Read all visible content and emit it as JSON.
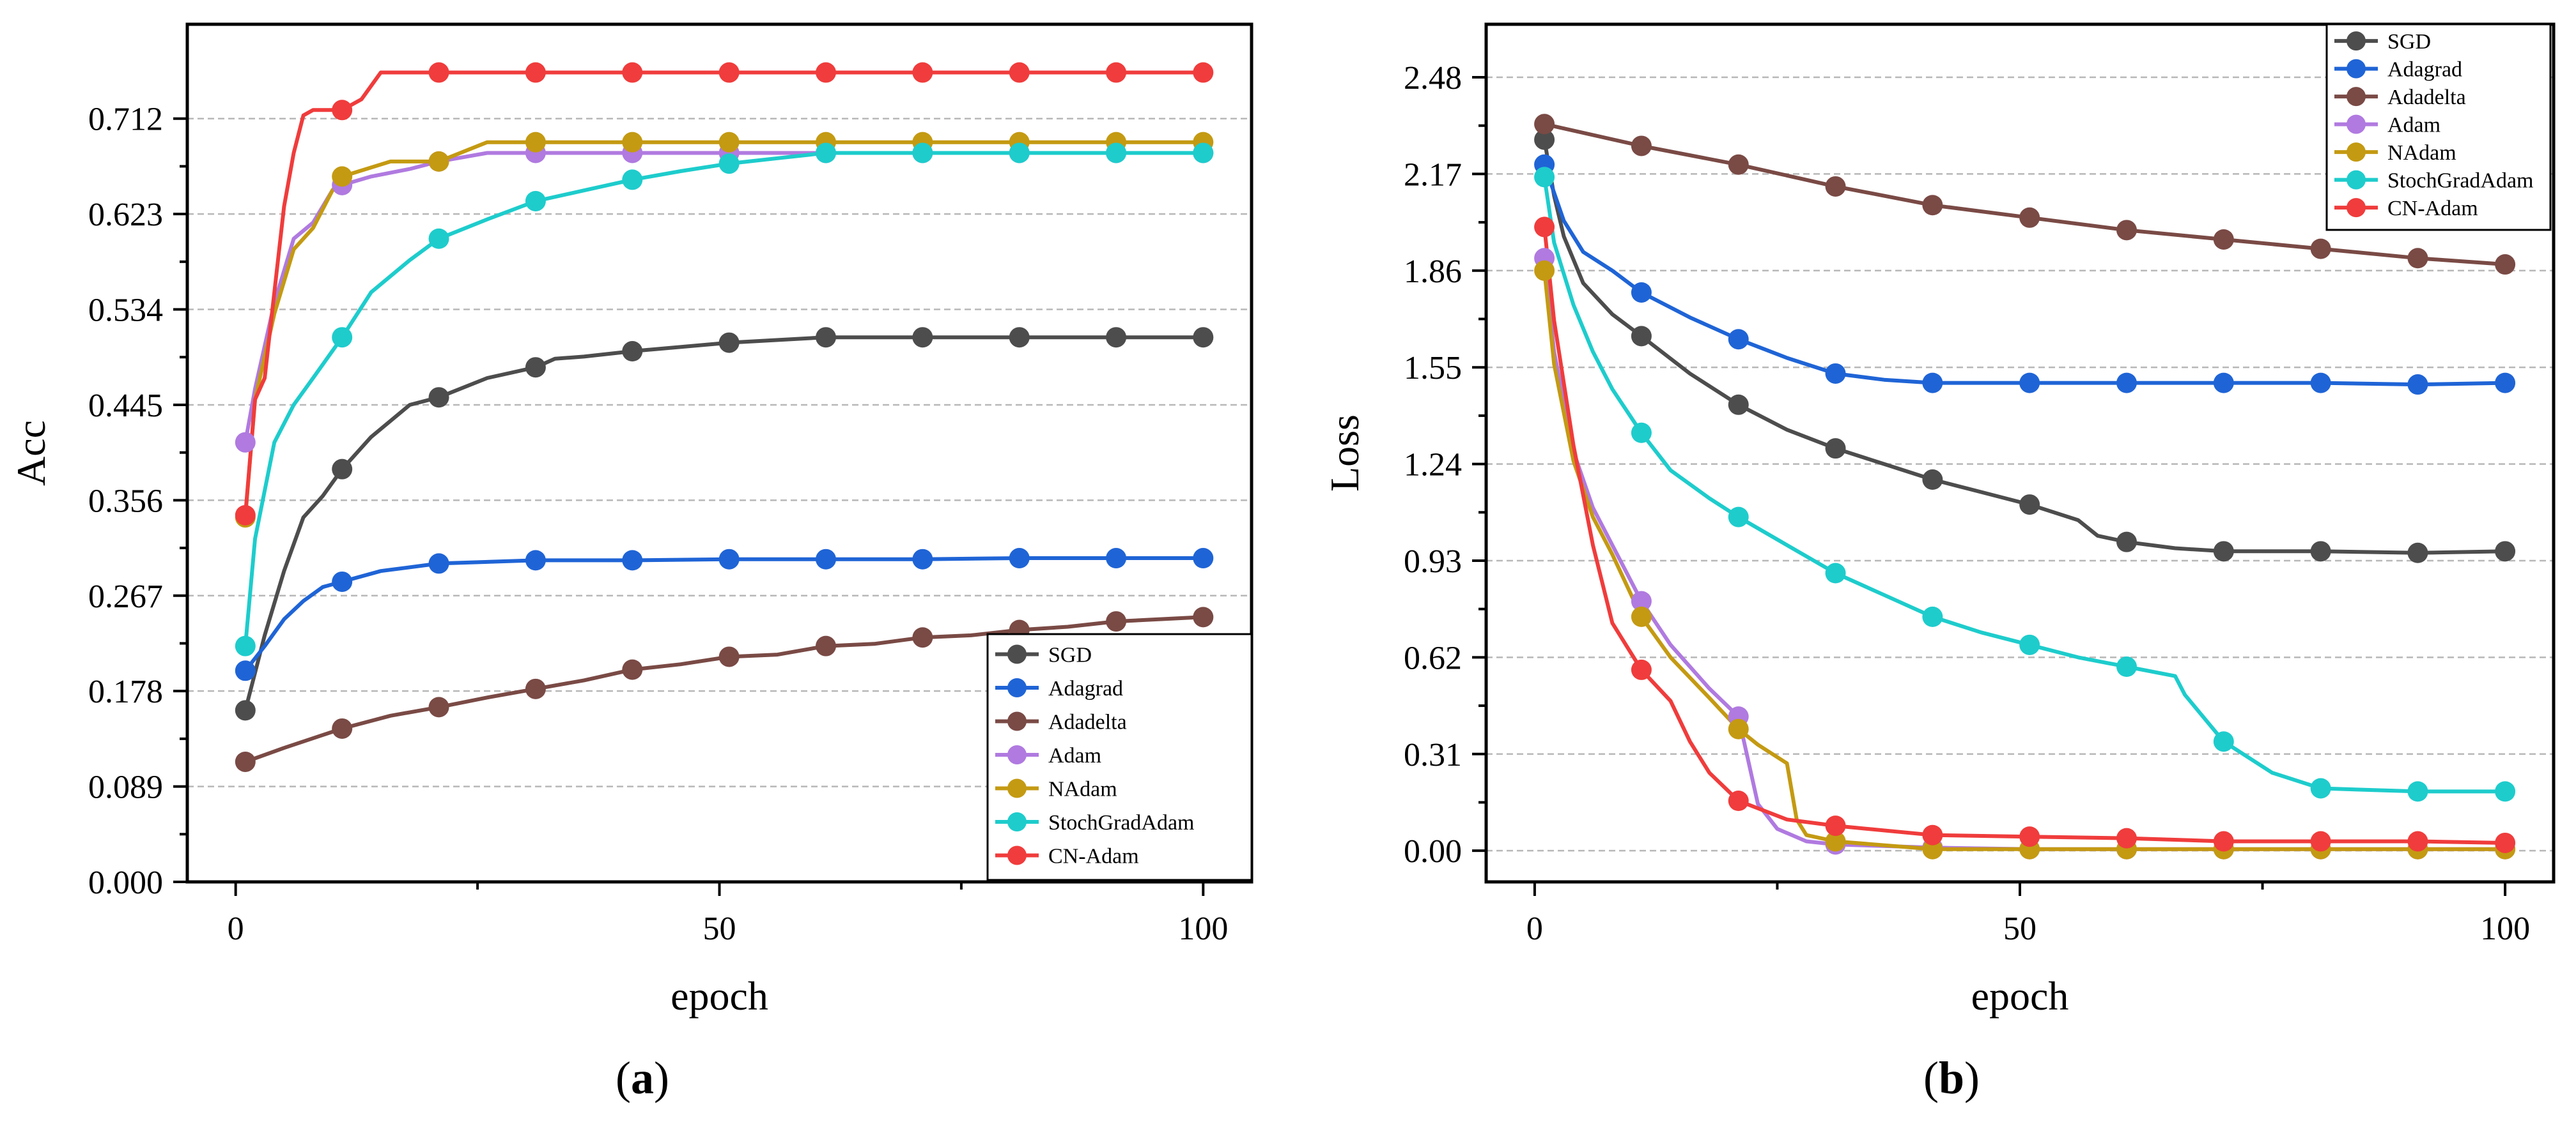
{
  "chart_data": [
    {
      "panel": "(a)",
      "panel_letter": "a",
      "type": "line",
      "xlabel": "epoch",
      "ylabel": "Acc",
      "xlim": [
        -5,
        105
      ],
      "ylim": [
        0,
        0.8
      ],
      "xticks": [
        0,
        50,
        100
      ],
      "xtick_labels": [
        "0",
        "50",
        "100"
      ],
      "yticks": [
        0,
        0.089,
        0.178,
        0.267,
        0.356,
        0.445,
        0.534,
        0.623,
        0.712
      ],
      "ytick_labels": [
        "0.000",
        "0.089",
        "0.178",
        "0.267",
        "0.356",
        "0.445",
        "0.534",
        "0.623",
        "0.712"
      ],
      "legend_position": "bottom-right",
      "marker_epochs": [
        1,
        11,
        21,
        31,
        41,
        51,
        61,
        71,
        81,
        91,
        100
      ],
      "series": [
        {
          "name": "SGD",
          "color": "#4d4d4d",
          "x": [
            1,
            3,
            5,
            7,
            9,
            11,
            14,
            18,
            21,
            26,
            31,
            33,
            36,
            41,
            51,
            61,
            71,
            81,
            91,
            100
          ],
          "values": [
            0.16,
            0.23,
            0.29,
            0.34,
            0.36,
            0.385,
            0.415,
            0.445,
            0.452,
            0.47,
            0.48,
            0.488,
            0.49,
            0.495,
            0.503,
            0.508,
            0.508,
            0.508,
            0.508,
            0.508
          ],
          "markers": [
            0.16,
            0.385,
            0.452,
            0.48,
            0.495,
            0.503,
            0.508,
            0.508,
            0.508,
            0.508,
            0.508
          ]
        },
        {
          "name": "Adagrad",
          "color": "#1f64d6",
          "x": [
            1,
            3,
            5,
            7,
            9,
            11,
            15,
            21,
            31,
            41,
            51,
            61,
            71,
            81,
            91,
            100
          ],
          "values": [
            0.197,
            0.22,
            0.245,
            0.262,
            0.275,
            0.28,
            0.29,
            0.297,
            0.3,
            0.3,
            0.301,
            0.301,
            0.301,
            0.302,
            0.302,
            0.302
          ],
          "markers": [
            0.197,
            0.28,
            0.297,
            0.3,
            0.3,
            0.301,
            0.301,
            0.301,
            0.302,
            0.302,
            0.302
          ]
        },
        {
          "name": "Adadelta",
          "color": "#7a4a45",
          "x": [
            1,
            5,
            11,
            16,
            21,
            26,
            31,
            36,
            41,
            46,
            51,
            56,
            61,
            66,
            71,
            76,
            81,
            86,
            91,
            100
          ],
          "values": [
            0.112,
            0.125,
            0.143,
            0.155,
            0.163,
            0.172,
            0.18,
            0.188,
            0.198,
            0.203,
            0.21,
            0.212,
            0.22,
            0.222,
            0.228,
            0.23,
            0.235,
            0.238,
            0.243,
            0.247
          ],
          "markers": [
            0.112,
            0.143,
            0.163,
            0.18,
            0.198,
            0.21,
            0.22,
            0.228,
            0.235,
            0.243,
            0.247
          ]
        },
        {
          "name": "Adam",
          "color": "#b07ae0",
          "x": [
            1,
            2,
            4,
            6,
            8,
            10,
            11,
            14,
            18,
            21,
            26,
            31,
            41,
            51,
            61,
            71,
            81,
            91,
            100
          ],
          "values": [
            0.41,
            0.46,
            0.54,
            0.6,
            0.615,
            0.645,
            0.65,
            0.658,
            0.665,
            0.672,
            0.68,
            0.68,
            0.68,
            0.68,
            0.68,
            0.68,
            0.68,
            0.68,
            0.68
          ],
          "markers": [
            0.41,
            0.65,
            0.672,
            0.68,
            0.68,
            0.68,
            0.68,
            0.68,
            0.68,
            0.68,
            0.68
          ]
        },
        {
          "name": "NAdam",
          "color": "#c49a12",
          "x": [
            1,
            2,
            4,
            6,
            8,
            10,
            11,
            16,
            21,
            26,
            31,
            41,
            51,
            61,
            71,
            81,
            91,
            100
          ],
          "values": [
            0.34,
            0.45,
            0.53,
            0.59,
            0.61,
            0.645,
            0.658,
            0.672,
            0.672,
            0.69,
            0.69,
            0.69,
            0.69,
            0.69,
            0.69,
            0.69,
            0.69,
            0.69
          ],
          "markers": [
            0.34,
            0.658,
            0.672,
            0.69,
            0.69,
            0.69,
            0.69,
            0.69,
            0.69,
            0.69,
            0.69
          ]
        },
        {
          "name": "StochGradAdam",
          "color": "#1ecccc",
          "x": [
            1,
            2,
            4,
            6,
            8,
            11,
            14,
            18,
            21,
            26,
            31,
            36,
            41,
            46,
            51,
            56,
            61,
            71,
            81,
            91,
            100
          ],
          "values": [
            0.22,
            0.32,
            0.41,
            0.445,
            0.47,
            0.508,
            0.55,
            0.58,
            0.6,
            0.618,
            0.635,
            0.645,
            0.655,
            0.663,
            0.67,
            0.675,
            0.68,
            0.68,
            0.68,
            0.68,
            0.68
          ],
          "markers": [
            0.22,
            0.508,
            0.6,
            0.635,
            0.655,
            0.67,
            0.68,
            0.68,
            0.68,
            0.68,
            0.68
          ]
        },
        {
          "name": "CN-Adam",
          "color": "#f03c3c",
          "x": [
            1,
            2,
            3,
            4,
            5,
            6,
            7,
            8,
            9,
            11,
            13,
            15,
            21,
            31,
            41,
            51,
            61,
            71,
            81,
            91,
            100
          ],
          "values": [
            0.342,
            0.45,
            0.47,
            0.55,
            0.63,
            0.68,
            0.715,
            0.72,
            0.72,
            0.72,
            0.73,
            0.755,
            0.755,
            0.755,
            0.755,
            0.755,
            0.755,
            0.755,
            0.755,
            0.755,
            0.755
          ],
          "markers": [
            0.342,
            0.72,
            0.755,
            0.755,
            0.755,
            0.755,
            0.755,
            0.755,
            0.755,
            0.755,
            0.755
          ]
        }
      ]
    },
    {
      "panel": "(b)",
      "panel_letter": "b",
      "type": "line",
      "xlabel": "epoch",
      "ylabel": "Loss",
      "xlim": [
        -5,
        105
      ],
      "ylim": [
        -0.1,
        2.65
      ],
      "xticks": [
        0,
        50,
        100
      ],
      "xtick_labels": [
        "0",
        "50",
        "100"
      ],
      "yticks": [
        0,
        0.31,
        0.62,
        0.93,
        1.24,
        1.55,
        1.86,
        2.17,
        2.48
      ],
      "ytick_labels": [
        "0.00",
        "0.31",
        "0.62",
        "0.93",
        "1.24",
        "1.55",
        "1.86",
        "2.17",
        "2.48"
      ],
      "legend_position": "top-right",
      "marker_epochs": [
        1,
        11,
        21,
        31,
        41,
        51,
        61,
        71,
        81,
        91,
        100
      ],
      "series": [
        {
          "name": "SGD",
          "color": "#4d4d4d",
          "x": [
            1,
            2,
            3,
            5,
            8,
            11,
            16,
            21,
            26,
            31,
            36,
            41,
            46,
            51,
            56,
            58,
            61,
            66,
            71,
            81,
            91,
            100
          ],
          "values": [
            2.28,
            2.1,
            1.97,
            1.82,
            1.72,
            1.65,
            1.53,
            1.43,
            1.35,
            1.29,
            1.24,
            1.19,
            1.15,
            1.11,
            1.06,
            1.01,
            0.99,
            0.97,
            0.96,
            0.96,
            0.955,
            0.96
          ],
          "markers": [
            2.28,
            1.65,
            1.43,
            1.29,
            1.19,
            1.11,
            0.99,
            0.96,
            0.96,
            0.955,
            0.96
          ]
        },
        {
          "name": "Adagrad",
          "color": "#1f64d6",
          "x": [
            1,
            3,
            5,
            8,
            11,
            16,
            21,
            26,
            31,
            36,
            41,
            51,
            61,
            71,
            81,
            91,
            100
          ],
          "values": [
            2.2,
            2.02,
            1.92,
            1.86,
            1.79,
            1.71,
            1.64,
            1.58,
            1.53,
            1.51,
            1.5,
            1.5,
            1.5,
            1.5,
            1.5,
            1.495,
            1.5
          ],
          "markers": [
            2.2,
            1.79,
            1.64,
            1.53,
            1.5,
            1.5,
            1.5,
            1.5,
            1.5,
            1.495,
            1.5
          ]
        },
        {
          "name": "Adadelta",
          "color": "#7a4a45",
          "x": [
            1,
            11,
            21,
            31,
            41,
            51,
            61,
            71,
            81,
            91,
            100
          ],
          "values": [
            2.33,
            2.26,
            2.2,
            2.13,
            2.07,
            2.03,
            1.99,
            1.96,
            1.93,
            1.9,
            1.88
          ],
          "markers": [
            2.33,
            2.26,
            2.2,
            2.13,
            2.07,
            2.03,
            1.99,
            1.96,
            1.93,
            1.9,
            1.88
          ]
        },
        {
          "name": "Adam",
          "color": "#b07ae0",
          "x": [
            1,
            2,
            4,
            6,
            8,
            11,
            14,
            18,
            21,
            23,
            25,
            28,
            31,
            41,
            51,
            61,
            71,
            81,
            91,
            100
          ],
          "values": [
            1.9,
            1.6,
            1.28,
            1.1,
            0.98,
            0.8,
            0.66,
            0.52,
            0.43,
            0.15,
            0.07,
            0.03,
            0.02,
            0.01,
            0.005,
            0.005,
            0.005,
            0.005,
            0.005,
            0.005
          ],
          "markers": [
            1.9,
            0.8,
            0.43,
            0.02,
            0.01,
            0.005,
            0.005,
            0.005,
            0.005,
            0.005,
            0.005
          ]
        },
        {
          "name": "NAdam",
          "color": "#c49a12",
          "x": [
            1,
            2,
            4,
            6,
            8,
            11,
            14,
            18,
            21,
            23,
            26,
            27,
            28,
            31,
            41,
            51,
            61,
            71,
            81,
            91,
            100
          ],
          "values": [
            1.86,
            1.56,
            1.25,
            1.07,
            0.95,
            0.75,
            0.62,
            0.49,
            0.39,
            0.34,
            0.28,
            0.1,
            0.05,
            0.03,
            0.005,
            0.005,
            0.005,
            0.005,
            0.005,
            0.005,
            0.005
          ],
          "markers": [
            1.86,
            0.75,
            0.39,
            0.03,
            0.005,
            0.005,
            0.005,
            0.005,
            0.005,
            0.005,
            0.005
          ]
        },
        {
          "name": "StochGradAdam",
          "color": "#1ecccc",
          "x": [
            1,
            2,
            4,
            6,
            8,
            11,
            14,
            18,
            21,
            26,
            31,
            36,
            41,
            46,
            51,
            56,
            61,
            66,
            67,
            71,
            76,
            81,
            91,
            100
          ],
          "values": [
            2.16,
            1.95,
            1.75,
            1.6,
            1.48,
            1.34,
            1.22,
            1.13,
            1.07,
            0.98,
            0.89,
            0.82,
            0.75,
            0.7,
            0.66,
            0.62,
            0.59,
            0.56,
            0.5,
            0.35,
            0.25,
            0.2,
            0.19,
            0.19
          ],
          "markers": [
            2.16,
            1.34,
            1.07,
            0.89,
            0.75,
            0.66,
            0.59,
            0.35,
            0.2,
            0.19,
            0.19
          ]
        },
        {
          "name": "CN-Adam",
          "color": "#f03c3c",
          "x": [
            1,
            2,
            4,
            6,
            8,
            11,
            14,
            16,
            18,
            21,
            26,
            31,
            41,
            51,
            61,
            71,
            81,
            91,
            100
          ],
          "values": [
            2.0,
            1.7,
            1.3,
            0.98,
            0.73,
            0.58,
            0.48,
            0.35,
            0.25,
            0.16,
            0.1,
            0.08,
            0.05,
            0.045,
            0.04,
            0.03,
            0.03,
            0.03,
            0.025
          ],
          "markers": [
            2.0,
            0.58,
            0.16,
            0.08,
            0.05,
            0.045,
            0.04,
            0.03,
            0.03,
            0.03,
            0.025
          ]
        }
      ]
    }
  ]
}
